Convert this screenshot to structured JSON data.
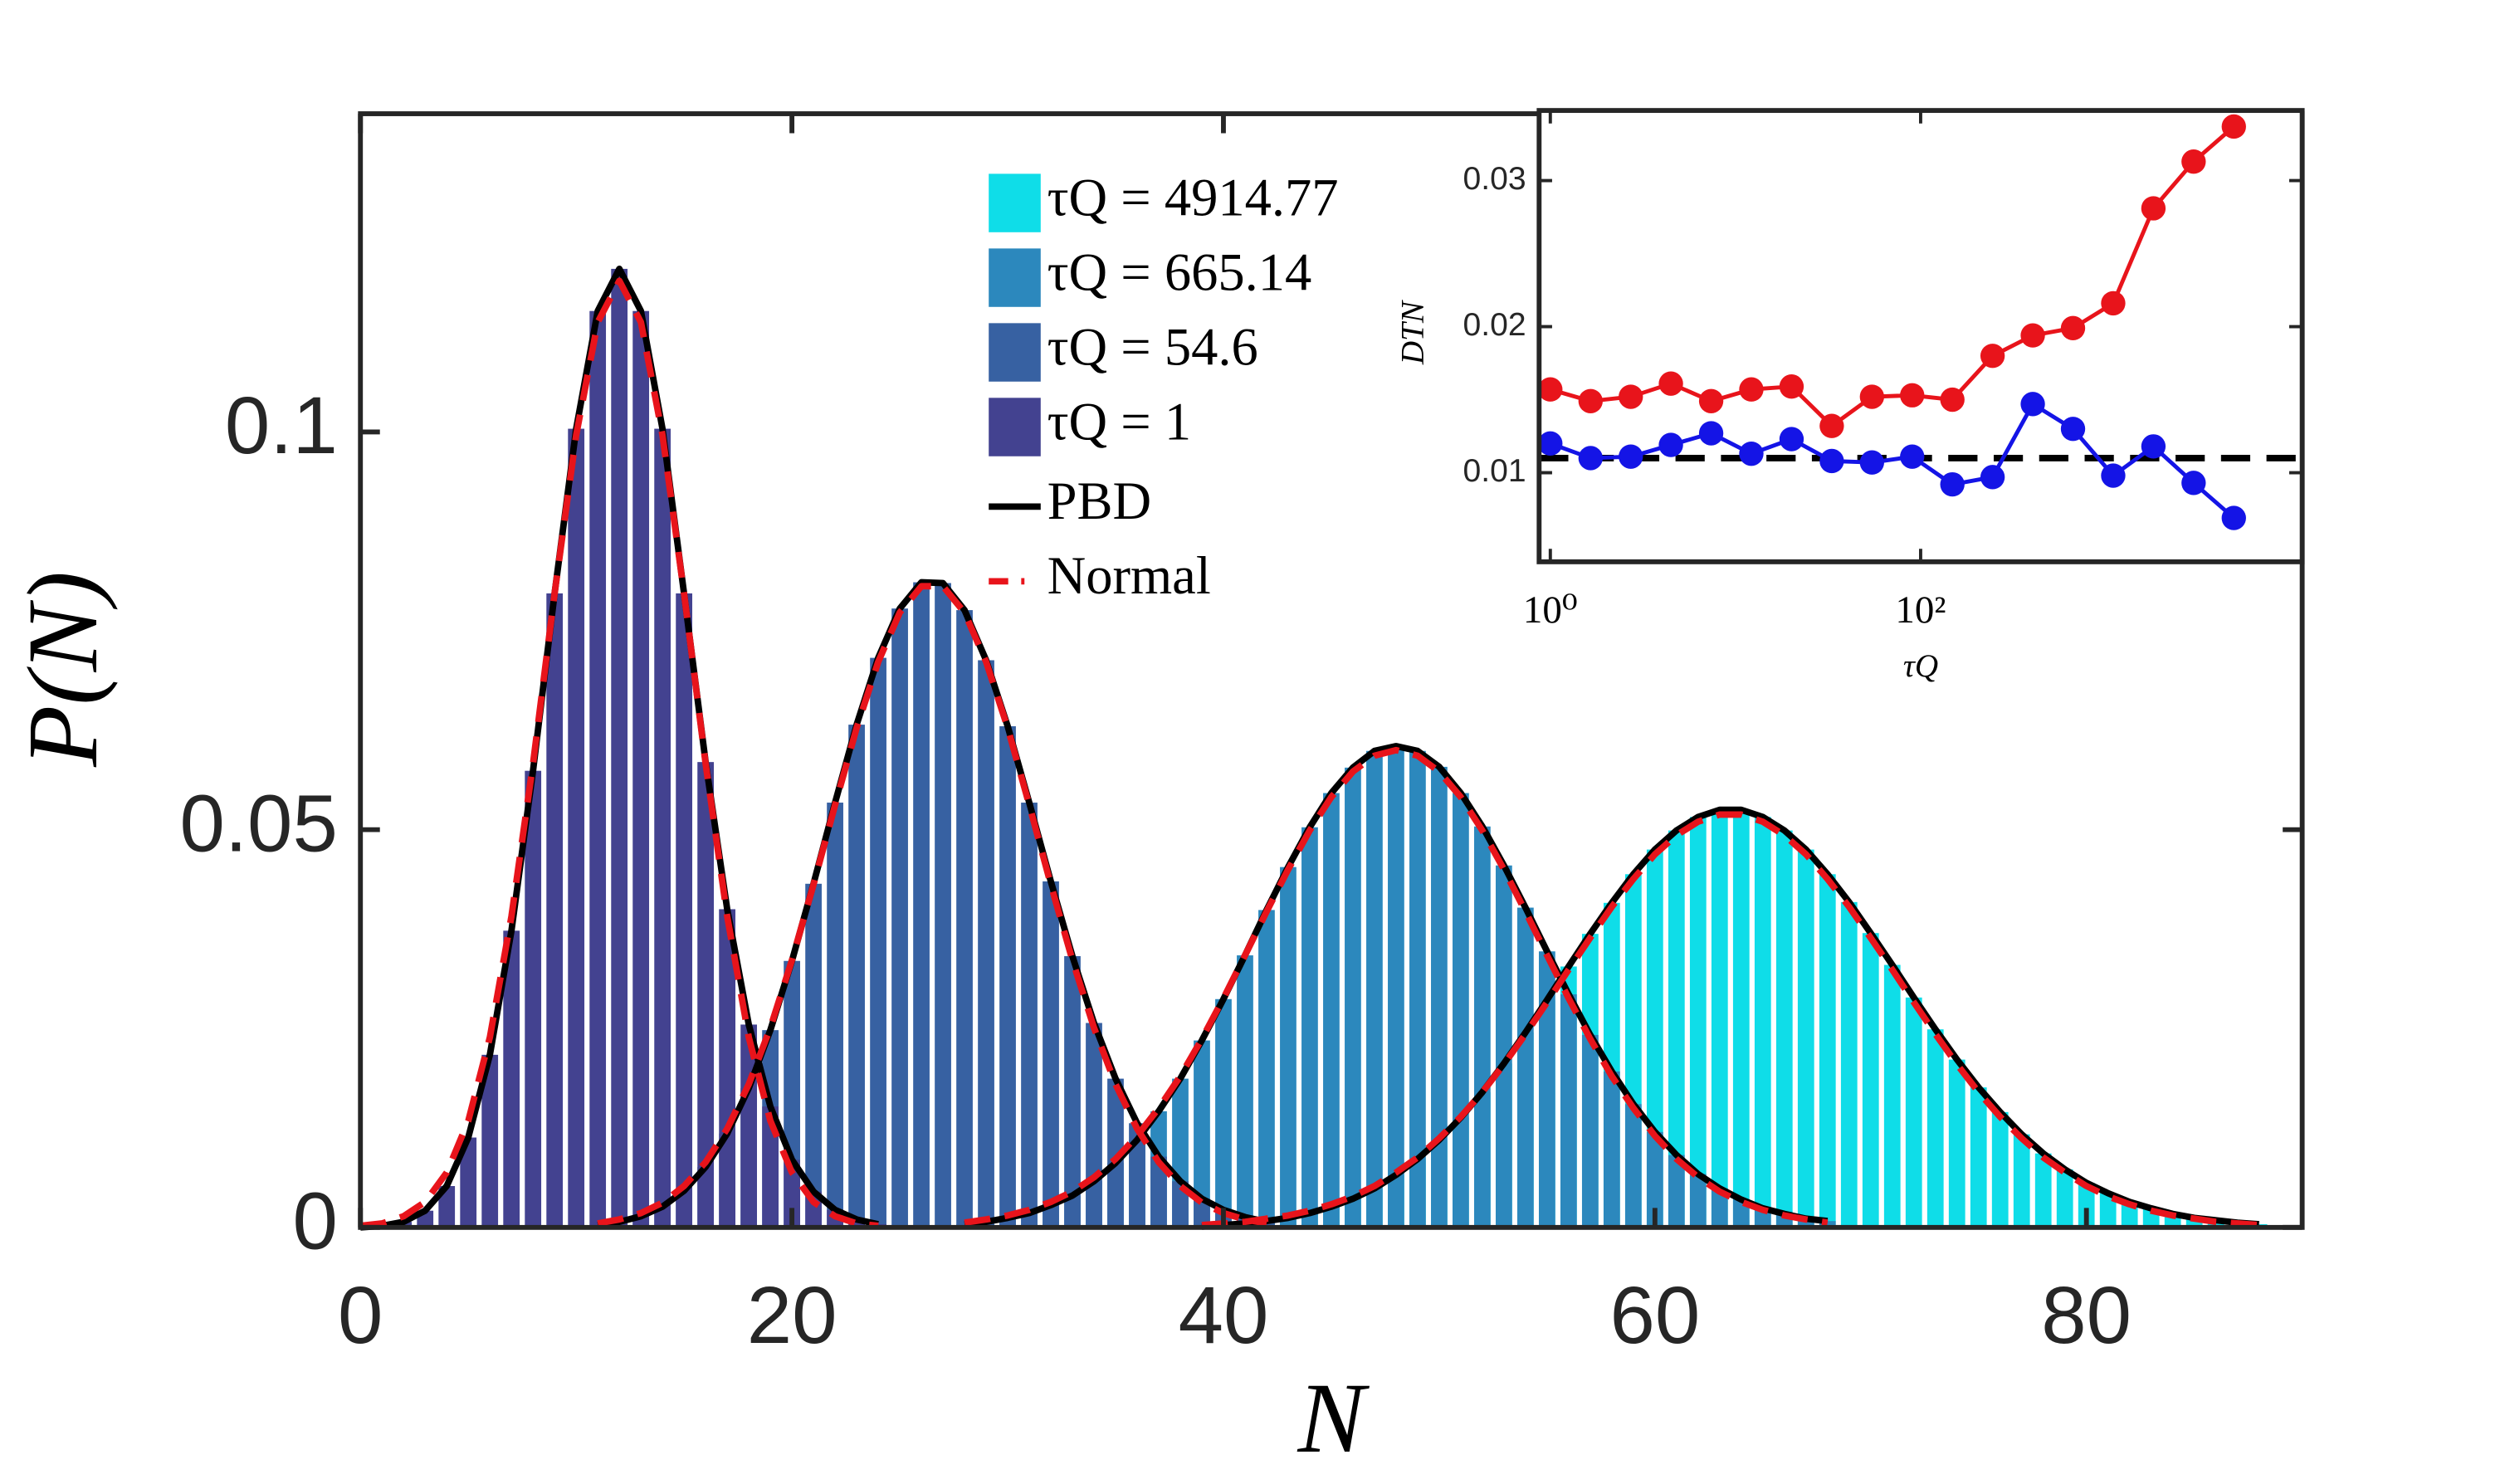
{
  "chart_data": [
    {
      "type": "bar",
      "xlabel": "N",
      "ylabel": "P(N)",
      "xlim": [
        0,
        90
      ],
      "ylim": [
        0,
        0.14
      ],
      "xticks": [
        0,
        20,
        40,
        60,
        80
      ],
      "yticks": [
        0,
        0.05,
        0.1
      ],
      "curve_legend": [
        {
          "name": "PBD",
          "color": "#000000"
        },
        {
          "name": "Normal",
          "color": "#e8141b",
          "dash": true
        }
      ],
      "series": [
        {
          "name": "τQ = 4914.77",
          "color": "#0fdde8",
          "x": [
            39,
            40,
            41,
            42,
            43,
            44,
            45,
            46,
            47,
            48,
            49,
            50,
            51,
            52,
            53,
            54,
            55,
            56,
            57,
            58,
            59,
            60,
            61,
            62,
            63,
            64,
            65,
            66,
            67,
            68,
            69,
            70,
            71,
            72,
            73,
            74,
            75,
            76,
            77,
            78,
            79,
            80,
            81,
            82,
            83,
            84,
            85,
            86,
            87,
            88
          ],
          "values": [
            0.0001,
            0.0003,
            0.0005,
            0.0008,
            0.0012,
            0.0018,
            0.0026,
            0.0036,
            0.0049,
            0.0066,
            0.0086,
            0.011,
            0.0138,
            0.017,
            0.0206,
            0.0245,
            0.0286,
            0.0328,
            0.0369,
            0.0408,
            0.0444,
            0.0475,
            0.0499,
            0.0516,
            0.0525,
            0.0525,
            0.0516,
            0.0499,
            0.0475,
            0.0444,
            0.0409,
            0.037,
            0.033,
            0.0289,
            0.0249,
            0.0211,
            0.0176,
            0.0145,
            0.0117,
            0.0093,
            0.0073,
            0.0056,
            0.0043,
            0.0032,
            0.0024,
            0.0017,
            0.0012,
            0.0009,
            0.0006,
            0.0004
          ],
          "normal": [
            0.0003,
            0.0005,
            0.0007,
            0.0011,
            0.0015,
            0.0021,
            0.0029,
            0.0039,
            0.0052,
            0.0069,
            0.0088,
            0.0112,
            0.0139,
            0.017,
            0.0205,
            0.0243,
            0.0283,
            0.0324,
            0.0364,
            0.0403,
            0.0438,
            0.0469,
            0.0493,
            0.051,
            0.0519,
            0.0519,
            0.051,
            0.0493,
            0.0469,
            0.0438,
            0.0403,
            0.0364,
            0.0324,
            0.0283,
            0.0243,
            0.0205,
            0.017,
            0.0139,
            0.0112,
            0.0088,
            0.0069,
            0.0052,
            0.0039,
            0.0029,
            0.0021,
            0.0015,
            0.0011,
            0.0007,
            0.0005,
            0.0003
          ]
        },
        {
          "name": "τQ = 665.14",
          "color": "#2c88bd",
          "x": [
            28,
            29,
            30,
            31,
            32,
            33,
            34,
            35,
            36,
            37,
            38,
            39,
            40,
            41,
            42,
            43,
            44,
            45,
            46,
            47,
            48,
            49,
            50,
            51,
            52,
            53,
            54,
            55,
            56,
            57,
            58,
            59,
            60,
            61,
            62,
            63,
            64,
            65,
            66,
            67,
            68
          ],
          "values": [
            0.0004,
            0.0007,
            0.0012,
            0.0018,
            0.0028,
            0.004,
            0.0058,
            0.0081,
            0.011,
            0.0146,
            0.0187,
            0.0235,
            0.0287,
            0.0342,
            0.0399,
            0.0453,
            0.0503,
            0.0546,
            0.0578,
            0.0599,
            0.0605,
            0.0599,
            0.0579,
            0.0546,
            0.0504,
            0.0455,
            0.0402,
            0.0347,
            0.0293,
            0.0242,
            0.0196,
            0.0155,
            0.012,
            0.0091,
            0.0067,
            0.0049,
            0.0035,
            0.0024,
            0.0017,
            0.0011,
            0.0008
          ],
          "normal": [
            0.0006,
            0.001,
            0.0015,
            0.0022,
            0.0032,
            0.0045,
            0.0063,
            0.0086,
            0.0115,
            0.015,
            0.019,
            0.0237,
            0.0288,
            0.0342,
            0.0397,
            0.045,
            0.0499,
            0.0541,
            0.0573,
            0.0593,
            0.06,
            0.0593,
            0.0573,
            0.0541,
            0.0499,
            0.045,
            0.0397,
            0.0342,
            0.0288,
            0.0237,
            0.019,
            0.015,
            0.0115,
            0.0086,
            0.0063,
            0.0045,
            0.0032,
            0.0022,
            0.0015,
            0.001,
            0.0006
          ]
        },
        {
          "name": "τQ = 54.6",
          "color": "#3761a2",
          "x": [
            11,
            12,
            13,
            14,
            15,
            16,
            17,
            18,
            19,
            20,
            21,
            22,
            23,
            24,
            25,
            26,
            27,
            28,
            29,
            30,
            31,
            32,
            33,
            34,
            35,
            36,
            37,
            38,
            39,
            40,
            41,
            42
          ],
          "values": [
            0.0003,
            0.0007,
            0.0014,
            0.0026,
            0.0046,
            0.0076,
            0.0118,
            0.0175,
            0.0248,
            0.0335,
            0.0432,
            0.0534,
            0.0632,
            0.0716,
            0.0778,
            0.0811,
            0.081,
            0.0776,
            0.0713,
            0.063,
            0.0534,
            0.0435,
            0.0341,
            0.0257,
            0.0187,
            0.0131,
            0.0089,
            0.0058,
            0.0036,
            0.0022,
            0.0013,
            0.0007
          ],
          "normal": [
            0.0005,
            0.001,
            0.0018,
            0.0031,
            0.0052,
            0.0082,
            0.0124,
            0.018,
            0.0251,
            0.0336,
            0.0431,
            0.0531,
            0.0628,
            0.0711,
            0.0773,
            0.0806,
            0.0806,
            0.0773,
            0.0711,
            0.0628,
            0.0531,
            0.0431,
            0.0336,
            0.0251,
            0.018,
            0.0124,
            0.0082,
            0.0052,
            0.0031,
            0.0018,
            0.001,
            0.0005
          ]
        },
        {
          "name": "τQ = 1",
          "color": "#434290",
          "x": [
            0,
            1,
            2,
            3,
            4,
            5,
            6,
            7,
            8,
            9,
            10,
            11,
            12,
            13,
            14,
            15,
            16,
            17,
            18,
            19,
            20,
            21,
            22,
            23,
            24
          ],
          "values": [
            0,
            0.0002,
            0.0007,
            0.0021,
            0.0052,
            0.0113,
            0.0217,
            0.0373,
            0.0574,
            0.0797,
            0.1004,
            0.1152,
            0.1205,
            0.1152,
            0.1004,
            0.0797,
            0.0585,
            0.04,
            0.0255,
            0.0152,
            0.0085,
            0.0045,
            0.0022,
            0.001,
            0.0004
          ],
          "normal": [
            0.0002,
            0.0005,
            0.0014,
            0.0032,
            0.0069,
            0.0134,
            0.0239,
            0.0391,
            0.0583,
            0.0797,
            0.0996,
            0.1138,
            0.119,
            0.1138,
            0.0996,
            0.0797,
            0.0583,
            0.0391,
            0.0239,
            0.0134,
            0.0069,
            0.0032,
            0.0014,
            0.0005,
            0.0002
          ]
        }
      ]
    },
    {
      "type": "line",
      "xlabel": "τQ",
      "ylabel": "DTN",
      "xscale": "log",
      "xlim": [
        0.87,
        11500
      ],
      "ylim": [
        0.0039,
        0.0348
      ],
      "xticks": [
        {
          "value": 1,
          "label": "10⁰"
        },
        {
          "value": 100,
          "label": "10²"
        }
      ],
      "yticks": [
        0.01,
        0.02,
        0.03
      ],
      "reference_y": 0.011,
      "x": [
        1,
        1.65,
        2.72,
        4.48,
        7.39,
        12.18,
        20.09,
        33.12,
        54.6,
        90.02,
        148.41,
        244.69,
        403.43,
        665.14,
        1096.63,
        1808.04,
        2980.96,
        4914.77
      ],
      "series": [
        {
          "color": "#e8141b",
          "values": [
            0.0157,
            0.0149,
            0.0152,
            0.0161,
            0.0149,
            0.0157,
            0.0159,
            0.0132,
            0.0152,
            0.0153,
            0.015,
            0.018,
            0.0194,
            0.0199,
            0.0216,
            0.0281,
            0.0313,
            0.0337
          ]
        },
        {
          "color": "#1414e6",
          "values": [
            0.012,
            0.011,
            0.0111,
            0.0119,
            0.0127,
            0.0113,
            0.0123,
            0.0108,
            0.0107,
            0.0111,
            0.0092,
            0.0097,
            0.0147,
            0.013,
            0.0098,
            0.0118,
            0.0093,
            0.0069
          ]
        }
      ]
    }
  ]
}
